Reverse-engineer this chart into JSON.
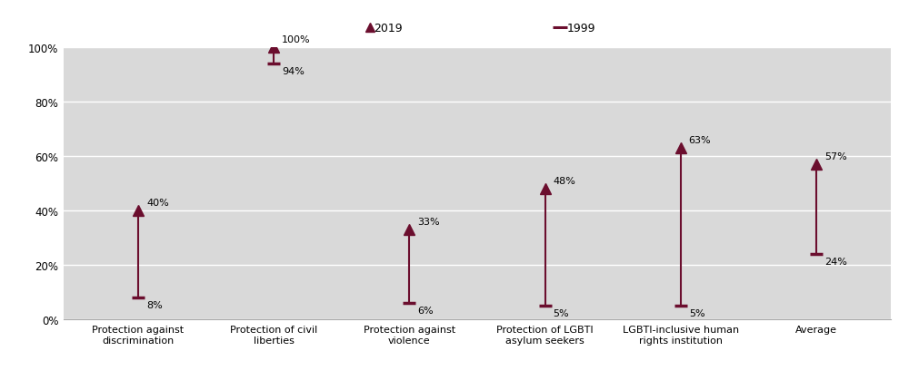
{
  "categories": [
    "Protection against\ndiscrimination",
    "Protection of civil\nliberties",
    "Protection against\nviolence",
    "Protection of LGBTI\nasylum seekers",
    "LGBTI-inclusive human\nrights institution",
    "Average"
  ],
  "values_2019": [
    40,
    100,
    33,
    48,
    63,
    57
  ],
  "values_1999": [
    8,
    94,
    6,
    5,
    5,
    24
  ],
  "labels_2019": [
    "40%",
    "100%",
    "33%",
    "48%",
    "63%",
    "57%"
  ],
  "labels_1999": [
    "8%",
    "94%",
    "6%",
    "5%",
    "5%",
    "24%"
  ],
  "color": "#6b0e2e",
  "plot_bg_color": "#d9d9d9",
  "fig_bg_color": "#ffffff",
  "header_bg": "#c8c8c8",
  "ylim": [
    0,
    100
  ],
  "yticks": [
    0,
    20,
    40,
    60,
    80,
    100
  ],
  "ytick_labels": [
    "0%",
    "20%",
    "40%",
    "60%",
    "80%",
    "100%"
  ],
  "legend_2019": "2019",
  "legend_1999": "1999",
  "figsize": [
    10.0,
    4.31
  ],
  "dpi": 100
}
